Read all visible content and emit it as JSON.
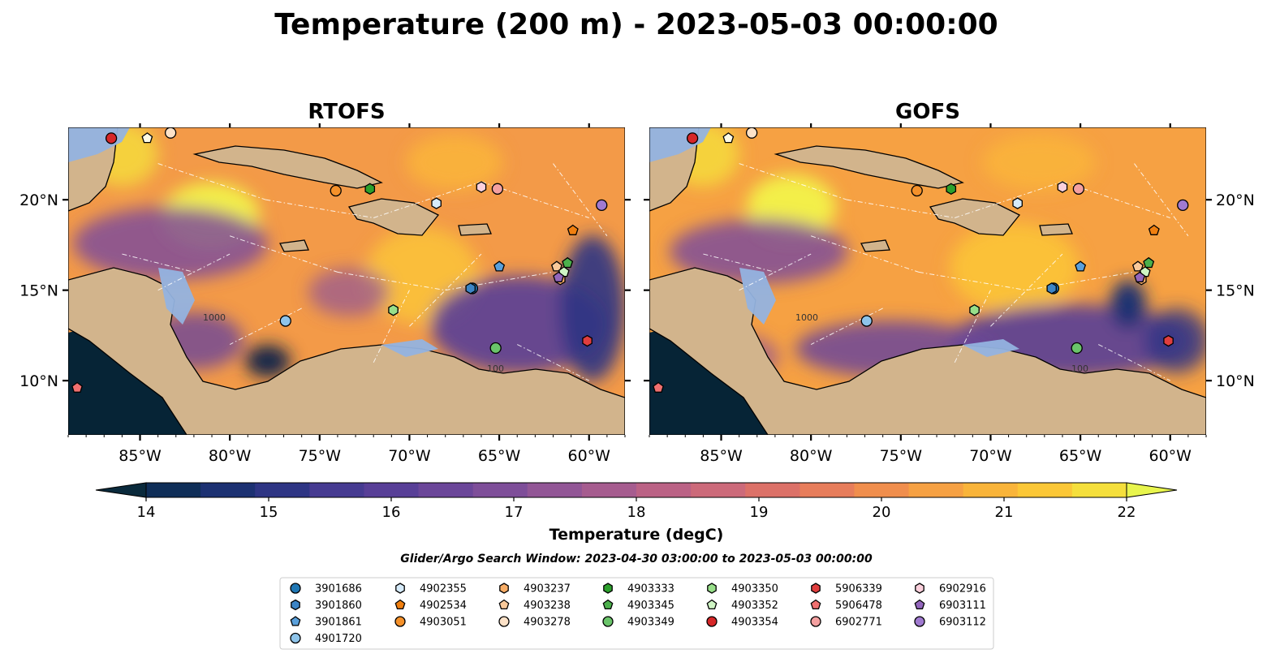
{
  "figure": {
    "title": "Temperature (200 m) - 2023-05-03 00:00:00",
    "search_window": "Glider/Argo Search Window: 2023-04-30 03:00:00 to 2023-05-03 00:00:00"
  },
  "panels": [
    {
      "id": "rtofs",
      "title": "RTOFS"
    },
    {
      "id": "gofs",
      "title": "GOFS"
    }
  ],
  "map": {
    "extent": {
      "lon": [
        -89,
        -58
      ],
      "lat": [
        7,
        24
      ]
    },
    "lon_ticks": [
      {
        "value": -85,
        "label": "85°W"
      },
      {
        "value": -80,
        "label": "80°W"
      },
      {
        "value": -75,
        "label": "75°W"
      },
      {
        "value": -70,
        "label": "70°W"
      },
      {
        "value": -65,
        "label": "65°W"
      },
      {
        "value": -60,
        "label": "60°W"
      }
    ],
    "lat_ticks": [
      {
        "value": 10,
        "label": "10°N"
      },
      {
        "value": 15,
        "label": "15°N"
      },
      {
        "value": 20,
        "label": "20°N"
      }
    ],
    "colors": {
      "land": "#d2b48c",
      "shelf": "#93b3e0",
      "deep_cold": "#062436",
      "warm": "#f7a844"
    },
    "contour_labels": [
      "1000",
      "100"
    ]
  },
  "colorbar": {
    "label": "Temperature (degC)",
    "min": 14,
    "max": 22,
    "ticks": [
      {
        "value": 14,
        "label": "14"
      },
      {
        "value": 15,
        "label": "15"
      },
      {
        "value": 16,
        "label": "16"
      },
      {
        "value": 17,
        "label": "17"
      },
      {
        "value": 18,
        "label": "18"
      },
      {
        "value": 19,
        "label": "19"
      },
      {
        "value": 20,
        "label": "20"
      },
      {
        "value": 21,
        "label": "21"
      },
      {
        "value": 22,
        "label": "22"
      }
    ],
    "colors": [
      "#0a2a3c",
      "#0f2e58",
      "#1c3172",
      "#2e3584",
      "#463b91",
      "#583f97",
      "#6b4699",
      "#7e4e99",
      "#925696",
      "#a65c8f",
      "#bb6285",
      "#cc6a7a",
      "#dc7168",
      "#e77d5b",
      "#f08e4d",
      "#f6a143",
      "#f9b43a",
      "#fbc737",
      "#f5df3c",
      "#e8f54d"
    ]
  },
  "floats": [
    {
      "id": "3901686",
      "shape": "circle",
      "fill": "#1f77b4",
      "lon": -66.5,
      "lat": 15.1
    },
    {
      "id": "3901860",
      "shape": "hexagon",
      "fill": "#3d85c6",
      "lon": -66.6,
      "lat": 15.1
    },
    {
      "id": "3901861",
      "shape": "pentagon",
      "fill": "#5aa0db",
      "lon": -65.0,
      "lat": 16.3
    },
    {
      "id": "4901720",
      "shape": "circle",
      "fill": "#8ec4ea",
      "lon": -76.9,
      "lat": 13.3
    },
    {
      "id": "4902355",
      "shape": "hexagon",
      "fill": "#d6ebfa",
      "lon": -68.5,
      "lat": 19.8
    },
    {
      "id": "4902534",
      "shape": "pentagon",
      "fill": "#f07f0f",
      "lon": -60.9,
      "lat": 18.3
    },
    {
      "id": "4903051",
      "shape": "circle",
      "fill": "#f5912a",
      "lon": -74.1,
      "lat": 20.5
    },
    {
      "id": "4903237",
      "shape": "hexagon",
      "fill": "#f8ad66",
      "lon": -61.6,
      "lat": 15.6
    },
    {
      "id": "4903238",
      "shape": "pentagon",
      "fill": "#f9c99a",
      "lon": -61.8,
      "lat": 16.3
    },
    {
      "id": "4903278",
      "shape": "circle",
      "fill": "#fde2c8",
      "lon": -83.3,
      "lat": 23.7
    },
    {
      "id": "4903333",
      "shape": "hexagon",
      "fill": "#2ca02c",
      "lon": -72.2,
      "lat": 20.6
    },
    {
      "id": "4903345",
      "shape": "pentagon",
      "fill": "#4cb04c",
      "lon": -61.2,
      "lat": 16.5
    },
    {
      "id": "4903349",
      "shape": "circle",
      "fill": "#6ac46a",
      "lon": -65.2,
      "lat": 11.8
    },
    {
      "id": "4903350",
      "shape": "hexagon",
      "fill": "#98df8a",
      "lon": -70.9,
      "lat": 13.9
    },
    {
      "id": "4903352",
      "shape": "pentagon",
      "fill": "#cff5c4",
      "lon": -61.4,
      "lat": 16.0
    },
    {
      "id": "4903354",
      "shape": "circle",
      "fill": "#d62728",
      "lon": -86.6,
      "lat": 23.4
    },
    {
      "id": "5906339",
      "shape": "hexagon",
      "fill": "#e03e3e",
      "lon": -60.1,
      "lat": 12.2
    },
    {
      "id": "5906478",
      "shape": "pentagon",
      "fill": "#f07070",
      "lon": -88.5,
      "lat": 9.6
    },
    {
      "id": "6902771",
      "shape": "circle",
      "fill": "#f4a0a0",
      "lon": -65.1,
      "lat": 20.6
    },
    {
      "id": "6902916",
      "shape": "hexagon",
      "fill": "#fbd0dc",
      "lon": -66.0,
      "lat": 20.7
    },
    {
      "id": "6903111",
      "shape": "pentagon",
      "fill": "#9467bd",
      "lon": -61.7,
      "lat": 15.7
    },
    {
      "id": "6903112",
      "shape": "circle",
      "fill": "#a07ad0",
      "lon": -59.3,
      "lat": 19.7
    },
    {
      "id": "marker-pentagon-white",
      "shape": "pentagon",
      "fill": "#fffbe6",
      "lon": -84.6,
      "lat": 23.4
    }
  ],
  "legend_columns": [
    [
      "3901686",
      "3901860",
      "3901861",
      "4901720"
    ],
    [
      "4902355",
      "4902534",
      "4903051"
    ],
    [
      "4903237",
      "4903238",
      "4903278"
    ],
    [
      "4903333",
      "4903345",
      "4903349"
    ],
    [
      "4903350",
      "4903352",
      "4903354"
    ],
    [
      "5906339",
      "5906478",
      "6902771"
    ],
    [
      "6902916",
      "6903111",
      "6903112"
    ]
  ]
}
